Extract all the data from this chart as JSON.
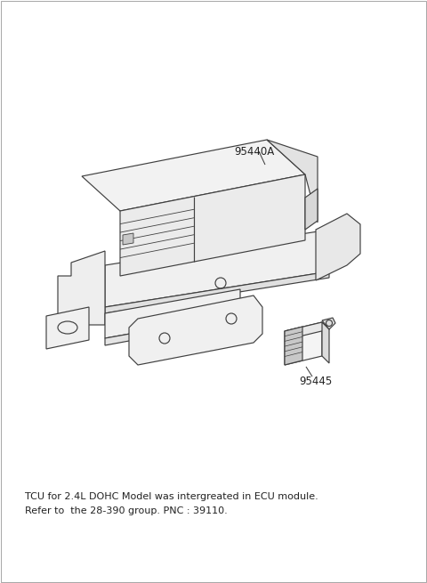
{
  "bg_color": "#ffffff",
  "line_color": "#404040",
  "text_color": "#222222",
  "label_95440A": "95440A",
  "label_95445": "95445",
  "footnote_line1": "TCU for 2.4L DOHC Model was intergreated in ECU module.",
  "footnote_line2": "Refer to  the 28-390 group. PNC : 39110.",
  "fig_width": 4.8,
  "fig_height": 6.55,
  "dpi": 100
}
